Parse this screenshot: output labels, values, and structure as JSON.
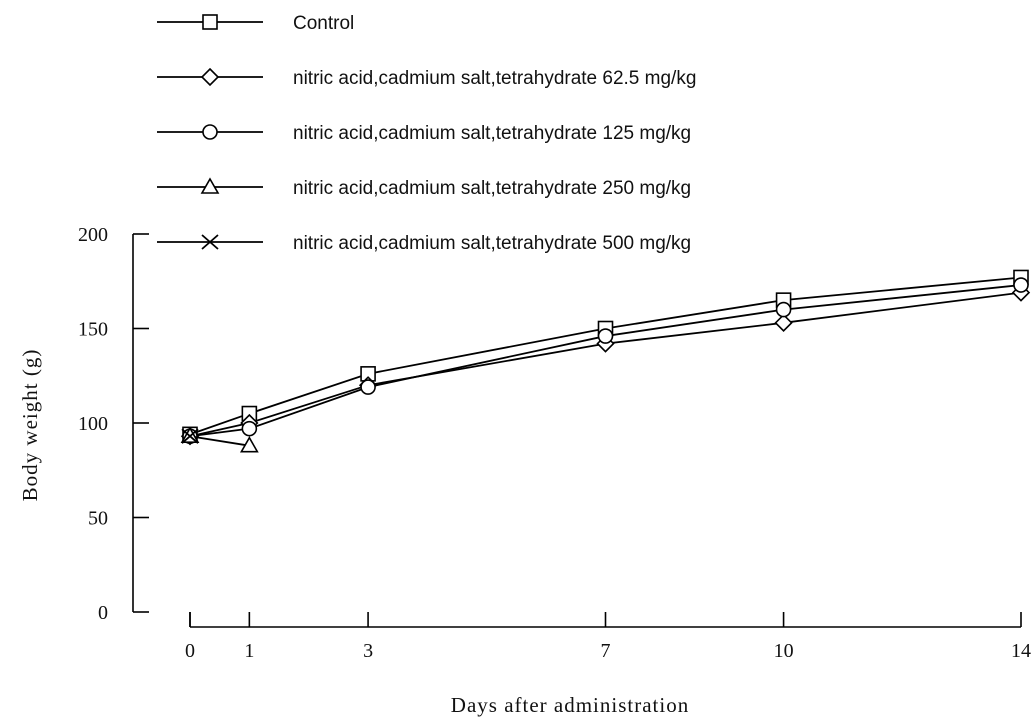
{
  "chart_data": {
    "type": "line",
    "xlabel": "Days after administration",
    "ylabel": "Body weight (g)",
    "ylim": [
      0,
      200
    ],
    "xlim": [
      0,
      14
    ],
    "x": [
      0,
      1,
      3,
      7,
      10,
      14
    ],
    "x_ticks": [
      "0",
      "1",
      "3",
      "7",
      "10",
      "14"
    ],
    "y_ticks": [
      "0",
      "50",
      "100",
      "150",
      "200"
    ],
    "grid": false,
    "legend_position": "top",
    "series": [
      {
        "name": "Control",
        "marker": "square",
        "values": [
          94,
          105,
          126,
          150,
          165,
          177
        ]
      },
      {
        "name": "nitric acid,cadmium salt,tetrahydrate",
        "dose": "62.5 mg/kg",
        "marker": "diamond",
        "values": [
          93,
          100,
          120,
          142,
          153,
          169
        ]
      },
      {
        "name": "nitric acid,cadmium salt,tetrahydrate",
        "dose": "125 mg/kg",
        "marker": "circle",
        "values": [
          93,
          97,
          119,
          146,
          160,
          173
        ]
      },
      {
        "name": "nitric acid,cadmium salt,tetrahydrate",
        "dose": "250 mg/kg",
        "marker": "triangle",
        "values": [
          93,
          88,
          null,
          null,
          null,
          null
        ]
      },
      {
        "name": "nitric acid,cadmium salt,tetrahydrate",
        "dose": "500 mg/kg",
        "marker": "cross",
        "values": [
          93,
          null,
          null,
          null,
          null,
          null
        ]
      }
    ]
  }
}
